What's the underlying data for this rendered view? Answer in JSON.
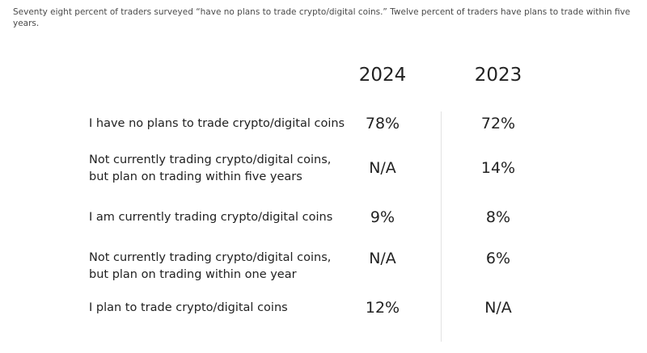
{
  "intro": "Seventy eight percent of traders surveyed “have no plans to trade crypto/digital coins.” Twelve percent of traders have plans to trade within five years.",
  "columns": [
    "2024",
    "2023"
  ],
  "rows": [
    {
      "label": "I have no plans to trade crypto/digital coins",
      "v2024": "78%",
      "v2023": "72%"
    },
    {
      "label": "Not currently trading crypto/digital coins, but plan on trading within five years",
      "v2024": "N/A",
      "v2023": "14%"
    },
    {
      "label": "I am currently trading crypto/digital coins",
      "v2024": "9%",
      "v2023": "8%"
    },
    {
      "label": "Not currently trading crypto/digital coins, but plan on trading within one year",
      "v2024": "N/A",
      "v2023": "6%"
    },
    {
      "label": "I plan to trade crypto/digital coins",
      "v2024": "12%",
      "v2023": "N/A"
    }
  ]
}
